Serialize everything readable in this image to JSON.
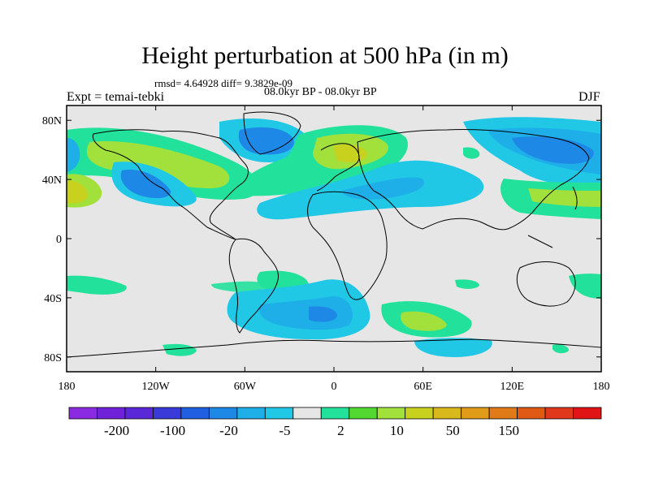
{
  "title": "Height perturbation at 500 hPa (in m)",
  "stats": "rmsd= 4.64928 diff= 9.3829e-09",
  "period": "08.0kyr BP - 08.0kyr BP",
  "expt": "Expt = temai-tebki",
  "season": "DJF",
  "map": {
    "lon_range": [
      -180,
      180
    ],
    "lat_range": [
      -90,
      90
    ],
    "lat_ticks": [
      {
        "lat": 80,
        "label": "80N"
      },
      {
        "lat": 40,
        "label": "40N"
      },
      {
        "lat": 0,
        "label": "0"
      },
      {
        "lat": -40,
        "label": "40S"
      },
      {
        "lat": -80,
        "label": "80S"
      }
    ],
    "lon_ticks": [
      {
        "lon": -180,
        "label": "180"
      },
      {
        "lon": -120,
        "label": "120W"
      },
      {
        "lon": -60,
        "label": "60W"
      },
      {
        "lon": 0,
        "label": "0"
      },
      {
        "lon": 60,
        "label": "60E"
      },
      {
        "lon": 120,
        "label": "120E"
      },
      {
        "lon": 180,
        "label": "180"
      }
    ],
    "background_color": "#e6e6e6"
  },
  "colorbar": {
    "colors": [
      "#8a2be2",
      "#7022d8",
      "#5a28d6",
      "#3a3ad8",
      "#1f5fe0",
      "#1e88e6",
      "#1eaee8",
      "#20c8e6",
      "#e6e6e6",
      "#22e19b",
      "#52d830",
      "#a2e03c",
      "#c8d21e",
      "#d8b81a",
      "#e09c18",
      "#e07b17",
      "#e05a16",
      "#e0381a",
      "#e01414"
    ],
    "labels": [
      "-200",
      "-100",
      "-20",
      "-5",
      "2",
      "10",
      "50",
      "150"
    ]
  }
}
